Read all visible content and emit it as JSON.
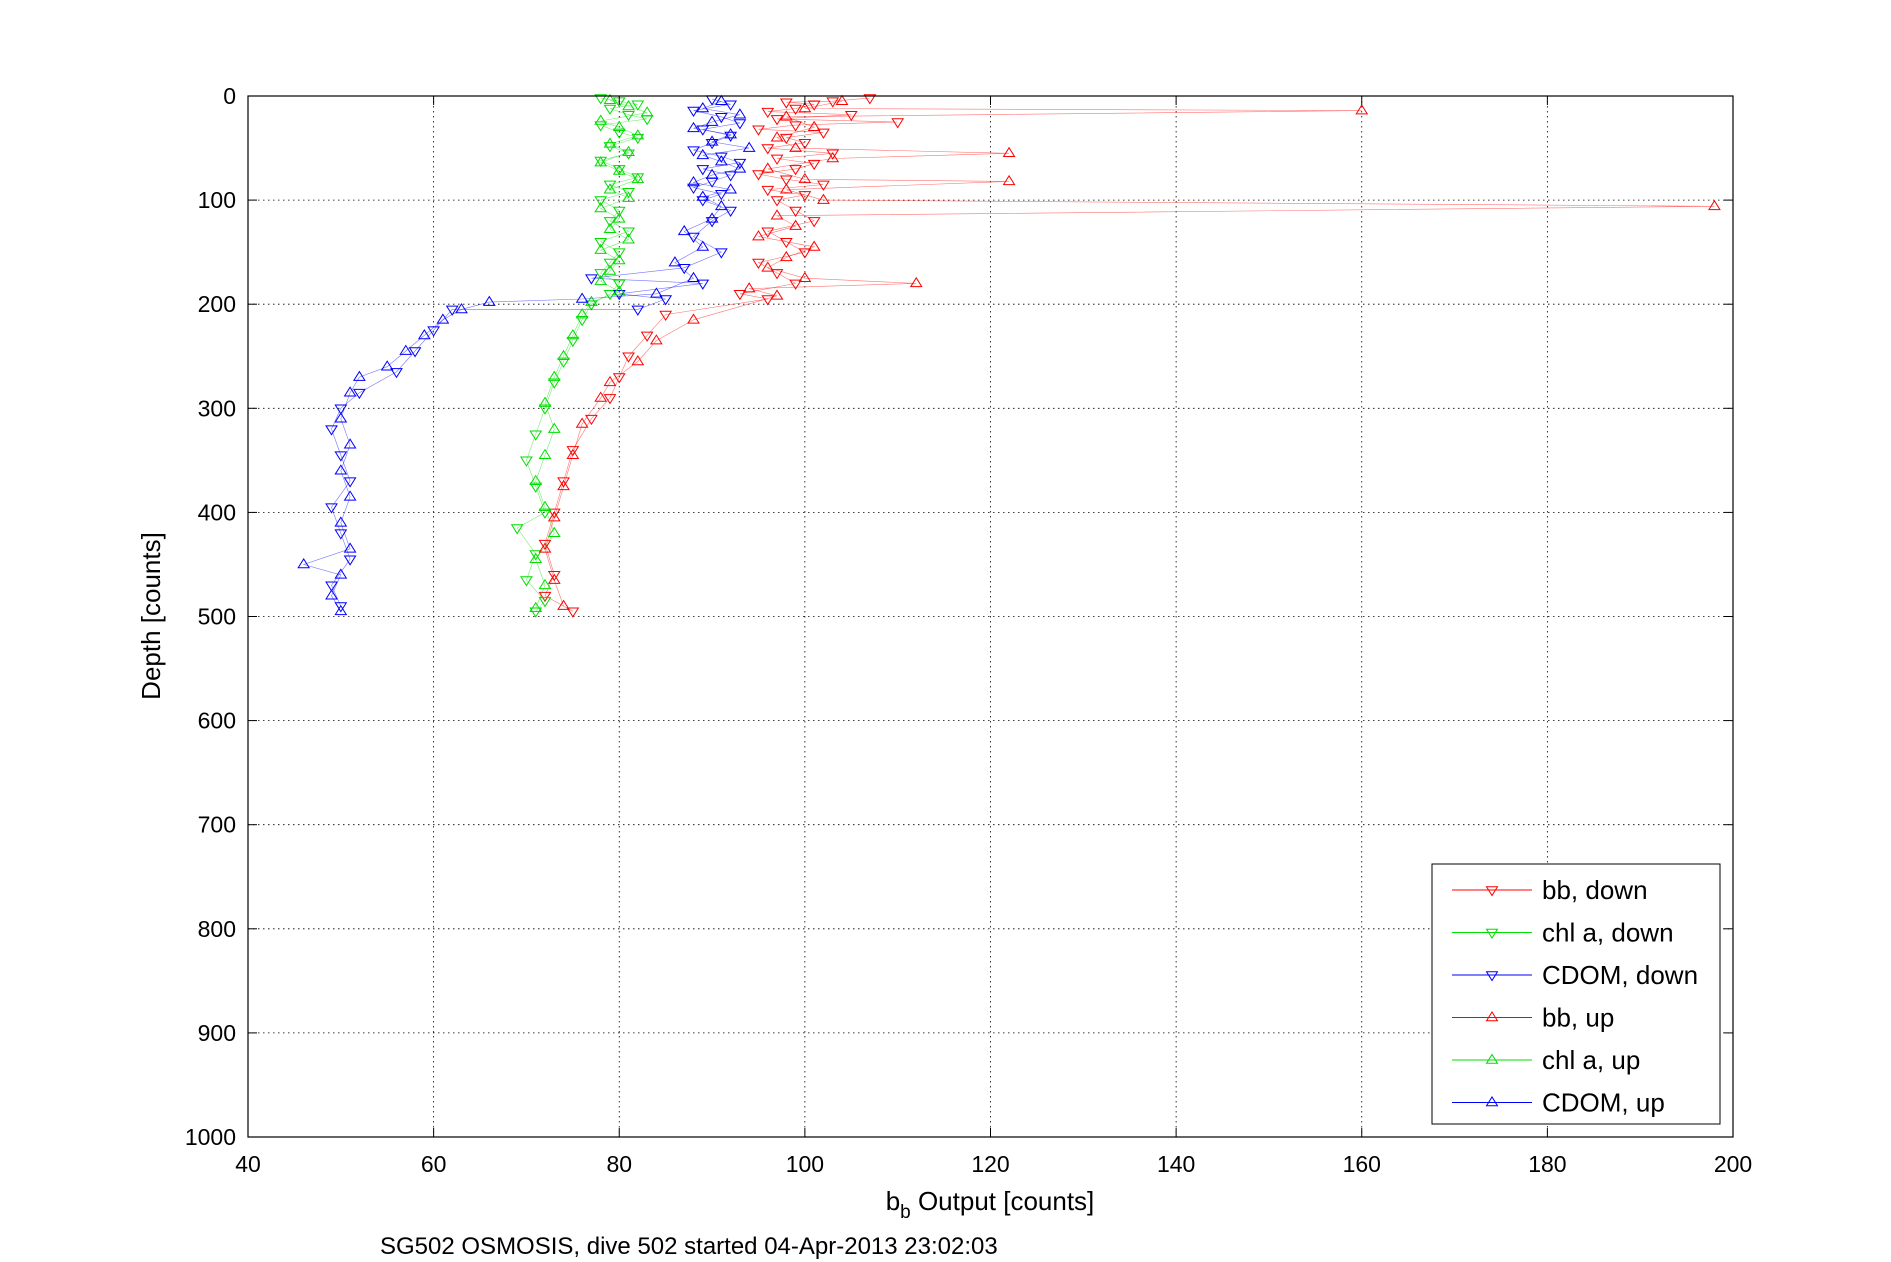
{
  "chart_data": {
    "type": "scatter",
    "xlabel_main": "b",
    "xlabel_sub": "b",
    "xlabel_rest": " Output [counts]",
    "ylabel": "Depth [counts]",
    "caption": "SG502 OSMOSIS, dive 502 started 04-Apr-2013 23:02:03",
    "xlim": [
      40,
      200
    ],
    "ylim": [
      0,
      1000
    ],
    "y_reversed": true,
    "grid": true,
    "legend_position": "bottom-right",
    "xticks": [
      "40",
      "60",
      "80",
      "100",
      "120",
      "140",
      "160",
      "180",
      "200"
    ],
    "yticks": [
      "0",
      "100",
      "200",
      "300",
      "400",
      "500",
      "600",
      "700",
      "800",
      "900",
      "1000"
    ],
    "series": [
      {
        "name": "bb, down",
        "color": "#ff0000",
        "marker": "triangle-down",
        "points": [
          [
            107,
            2
          ],
          [
            103,
            5
          ],
          [
            101,
            8
          ],
          [
            99,
            12
          ],
          [
            98,
            6
          ],
          [
            96,
            15
          ],
          [
            105,
            18
          ],
          [
            97,
            22
          ],
          [
            110,
            25
          ],
          [
            99,
            28
          ],
          [
            95,
            32
          ],
          [
            102,
            35
          ],
          [
            98,
            40
          ],
          [
            100,
            45
          ],
          [
            96,
            50
          ],
          [
            103,
            55
          ],
          [
            97,
            60
          ],
          [
            101,
            65
          ],
          [
            99,
            70
          ],
          [
            95,
            75
          ],
          [
            98,
            80
          ],
          [
            102,
            85
          ],
          [
            96,
            90
          ],
          [
            100,
            95
          ],
          [
            97,
            100
          ],
          [
            99,
            110
          ],
          [
            101,
            120
          ],
          [
            96,
            130
          ],
          [
            98,
            140
          ],
          [
            100,
            150
          ],
          [
            95,
            160
          ],
          [
            97,
            170
          ],
          [
            99,
            180
          ],
          [
            93,
            190
          ],
          [
            96,
            195
          ],
          [
            85,
            210
          ],
          [
            83,
            230
          ],
          [
            81,
            250
          ],
          [
            80,
            270
          ],
          [
            79,
            290
          ],
          [
            77,
            310
          ],
          [
            75,
            340
          ],
          [
            74,
            370
          ],
          [
            73,
            400
          ],
          [
            72,
            430
          ],
          [
            73,
            460
          ],
          [
            72,
            480
          ],
          [
            75,
            495
          ]
        ]
      },
      {
        "name": "chl a, down",
        "color": "#00dd00",
        "marker": "triangle-down",
        "points": [
          [
            78,
            2
          ],
          [
            80,
            5
          ],
          [
            82,
            8
          ],
          [
            79,
            12
          ],
          [
            81,
            18
          ],
          [
            83,
            22
          ],
          [
            78,
            28
          ],
          [
            80,
            35
          ],
          [
            82,
            40
          ],
          [
            79,
            48
          ],
          [
            81,
            55
          ],
          [
            78,
            62
          ],
          [
            80,
            70
          ],
          [
            82,
            78
          ],
          [
            79,
            85
          ],
          [
            81,
            92
          ],
          [
            78,
            100
          ],
          [
            80,
            110
          ],
          [
            79,
            120
          ],
          [
            81,
            130
          ],
          [
            78,
            140
          ],
          [
            80,
            150
          ],
          [
            79,
            160
          ],
          [
            78,
            170
          ],
          [
            80,
            180
          ],
          [
            79,
            190
          ],
          [
            77,
            200
          ],
          [
            76,
            215
          ],
          [
            75,
            235
          ],
          [
            74,
            255
          ],
          [
            73,
            275
          ],
          [
            72,
            300
          ],
          [
            71,
            325
          ],
          [
            70,
            350
          ],
          [
            71,
            375
          ],
          [
            72,
            400
          ],
          [
            69,
            415
          ],
          [
            71,
            440
          ],
          [
            70,
            465
          ],
          [
            72,
            485
          ],
          [
            71,
            495
          ]
        ]
      },
      {
        "name": "CDOM, down",
        "color": "#0000ff",
        "marker": "triangle-down",
        "points": [
          [
            90,
            3
          ],
          [
            92,
            8
          ],
          [
            88,
            14
          ],
          [
            91,
            20
          ],
          [
            93,
            26
          ],
          [
            89,
            32
          ],
          [
            92,
            38
          ],
          [
            90,
            45
          ],
          [
            88,
            52
          ],
          [
            91,
            58
          ],
          [
            93,
            64
          ],
          [
            89,
            70
          ],
          [
            92,
            76
          ],
          [
            90,
            82
          ],
          [
            88,
            88
          ],
          [
            91,
            94
          ],
          [
            89,
            100
          ],
          [
            92,
            110
          ],
          [
            90,
            120
          ],
          [
            88,
            135
          ],
          [
            91,
            150
          ],
          [
            87,
            165
          ],
          [
            89,
            180
          ],
          [
            85,
            195
          ],
          [
            82,
            205
          ],
          [
            80,
            190
          ],
          [
            77,
            175
          ],
          [
            62,
            205
          ],
          [
            60,
            225
          ],
          [
            58,
            245
          ],
          [
            56,
            265
          ],
          [
            52,
            285
          ],
          [
            50,
            300
          ],
          [
            49,
            320
          ],
          [
            50,
            345
          ],
          [
            51,
            370
          ],
          [
            49,
            395
          ],
          [
            50,
            420
          ],
          [
            51,
            445
          ],
          [
            49,
            470
          ],
          [
            50,
            490
          ]
        ]
      },
      {
        "name": "bb, up",
        "color": "#ff0000",
        "marker": "triangle-up",
        "points": [
          [
            160,
            14
          ],
          [
            122,
            55
          ],
          [
            122,
            82
          ],
          [
            198,
            106
          ],
          [
            112,
            180
          ],
          [
            104,
            5
          ],
          [
            100,
            12
          ],
          [
            98,
            20
          ],
          [
            101,
            30
          ],
          [
            97,
            40
          ],
          [
            99,
            50
          ],
          [
            103,
            60
          ],
          [
            96,
            70
          ],
          [
            100,
            80
          ],
          [
            98,
            90
          ],
          [
            102,
            100
          ],
          [
            97,
            115
          ],
          [
            99,
            125
          ],
          [
            95,
            135
          ],
          [
            101,
            145
          ],
          [
            98,
            155
          ],
          [
            96,
            165
          ],
          [
            100,
            175
          ],
          [
            94,
            185
          ],
          [
            97,
            192
          ],
          [
            88,
            215
          ],
          [
            84,
            235
          ],
          [
            82,
            255
          ],
          [
            79,
            275
          ],
          [
            78,
            290
          ],
          [
            76,
            315
          ],
          [
            75,
            345
          ],
          [
            74,
            375
          ],
          [
            73,
            405
          ],
          [
            72,
            435
          ],
          [
            73,
            465
          ],
          [
            74,
            490
          ]
        ]
      },
      {
        "name": "chl a, up",
        "color": "#00dd00",
        "marker": "triangle-up",
        "points": [
          [
            79,
            4
          ],
          [
            81,
            10
          ],
          [
            83,
            16
          ],
          [
            78,
            24
          ],
          [
            80,
            30
          ],
          [
            82,
            38
          ],
          [
            79,
            46
          ],
          [
            81,
            54
          ],
          [
            78,
            64
          ],
          [
            80,
            72
          ],
          [
            82,
            80
          ],
          [
            79,
            90
          ],
          [
            81,
            98
          ],
          [
            78,
            108
          ],
          [
            80,
            118
          ],
          [
            79,
            128
          ],
          [
            81,
            138
          ],
          [
            78,
            148
          ],
          [
            80,
            158
          ],
          [
            79,
            168
          ],
          [
            78,
            178
          ],
          [
            80,
            188
          ],
          [
            77,
            198
          ],
          [
            76,
            210
          ],
          [
            75,
            230
          ],
          [
            74,
            250
          ],
          [
            73,
            270
          ],
          [
            72,
            295
          ],
          [
            73,
            320
          ],
          [
            72,
            345
          ],
          [
            71,
            370
          ],
          [
            72,
            395
          ],
          [
            73,
            420
          ],
          [
            71,
            445
          ],
          [
            72,
            470
          ],
          [
            71,
            492
          ]
        ]
      },
      {
        "name": "CDOM, up",
        "color": "#0000ff",
        "marker": "triangle-up",
        "points": [
          [
            91,
            5
          ],
          [
            89,
            12
          ],
          [
            93,
            18
          ],
          [
            90,
            25
          ],
          [
            88,
            31
          ],
          [
            92,
            37
          ],
          [
            90,
            44
          ],
          [
            94,
            50
          ],
          [
            89,
            57
          ],
          [
            91,
            63
          ],
          [
            93,
            70
          ],
          [
            90,
            76
          ],
          [
            88,
            83
          ],
          [
            92,
            90
          ],
          [
            89,
            97
          ],
          [
            91,
            106
          ],
          [
            90,
            118
          ],
          [
            87,
            130
          ],
          [
            89,
            145
          ],
          [
            86,
            160
          ],
          [
            88,
            175
          ],
          [
            84,
            190
          ],
          [
            76,
            195
          ],
          [
            66,
            198
          ],
          [
            63,
            205
          ],
          [
            61,
            215
          ],
          [
            59,
            230
          ],
          [
            57,
            245
          ],
          [
            55,
            260
          ],
          [
            52,
            270
          ],
          [
            51,
            285
          ],
          [
            50,
            310
          ],
          [
            51,
            335
          ],
          [
            50,
            360
          ],
          [
            51,
            385
          ],
          [
            50,
            410
          ],
          [
            51,
            435
          ],
          [
            46,
            450
          ],
          [
            50,
            460
          ],
          [
            49,
            480
          ],
          [
            50,
            495
          ]
        ]
      }
    ]
  }
}
